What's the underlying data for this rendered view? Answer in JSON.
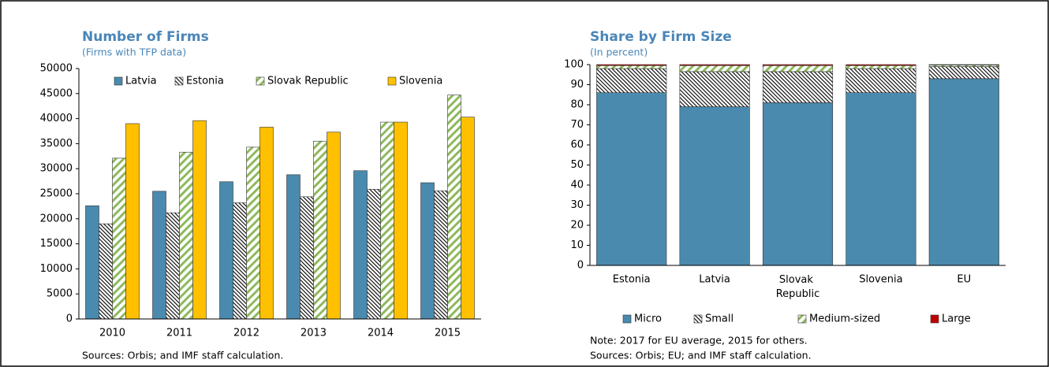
{
  "chart_data": [
    {
      "type": "bar",
      "title": "Number of Firms",
      "subtitle": "(Firms with TFP data)",
      "categories": [
        "2010",
        "2011",
        "2012",
        "2013",
        "2014",
        "2015"
      ],
      "series": [
        {
          "name": "Latvia",
          "color": "#4a8aae",
          "values": [
            22600,
            25500,
            27400,
            28800,
            29600,
            27200
          ]
        },
        {
          "name": "Estonia",
          "color": "#000000",
          "hatch": "dense",
          "values": [
            19000,
            21200,
            23200,
            24400,
            25900,
            25600
          ]
        },
        {
          "name": "Slovak Republic",
          "color": "#8db95a",
          "hatch": "wide",
          "values": [
            32100,
            33300,
            34300,
            35500,
            39300,
            44700
          ]
        },
        {
          "name": "Slovenia",
          "color": "#ffc000",
          "values": [
            39000,
            39600,
            38300,
            37300,
            39300,
            40300
          ]
        }
      ],
      "ylim": [
        0,
        50000
      ],
      "yticks": [
        0,
        5000,
        10000,
        15000,
        20000,
        25000,
        30000,
        35000,
        40000,
        45000,
        50000
      ],
      "grid": false,
      "legend": "top",
      "source": "Sources: Orbis; and IMF staff calculation."
    },
    {
      "type": "stacked_bar",
      "title": "Share by Firm Size",
      "subtitle": "(In percent)",
      "categories": [
        "Estonia",
        "Latvia",
        "Slovak Republic",
        "Slovenia",
        "EU"
      ],
      "series": [
        {
          "name": "Micro",
          "color": "#4a8aae",
          "values": [
            86,
            79,
            81,
            86,
            93
          ]
        },
        {
          "name": "Small",
          "color": "#000000",
          "hatch": "dense",
          "values": [
            12,
            17.5,
            15.5,
            12,
            6
          ]
        },
        {
          "name": "Medium-sized",
          "color": "#8db95a",
          "hatch": "wide",
          "values": [
            1.5,
            3,
            3,
            1.5,
            0.8
          ]
        },
        {
          "name": "Large",
          "color": "#c00000",
          "values": [
            0.5,
            0.5,
            0.5,
            0.5,
            0.2
          ]
        }
      ],
      "ylim": [
        0,
        100
      ],
      "yticks": [
        0,
        10,
        20,
        30,
        40,
        50,
        60,
        70,
        80,
        90,
        100
      ],
      "grid": false,
      "legend": "bottom",
      "note": "Note: 2017 for EU average, 2015 for others.",
      "source": "Sources: Orbis; EU; and IMF staff calculation."
    }
  ]
}
